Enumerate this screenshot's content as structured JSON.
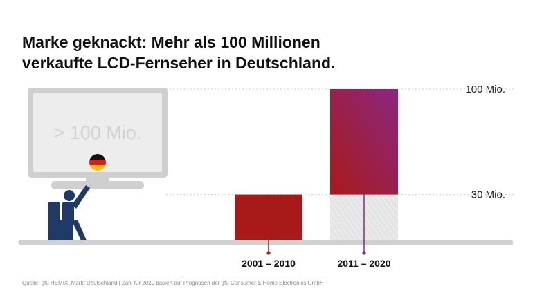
{
  "title_line1": "Marke geknackt: Mehr als 100 Millionen",
  "title_line2": "verkaufte LCD-Fernseher in Deutschland.",
  "tv_screen_text": "> 100 Mio.",
  "source": "Quelle: gfu HEMIX, Markt Deutschland | Zahl für 2020 basiert auf Prognosen der gfu Consumer & Home Electronics GmbH",
  "colors": {
    "bar1": "#a81a1a",
    "bar2_top_start": "#a81a1a",
    "bar2_top_end": "#8c2680",
    "bar2_base": "#e4e4e4",
    "tv_frame": "#cfcfcf",
    "person": "#1f3a66",
    "grid": "#d0d0d0",
    "axis": "#d0d0d0"
  },
  "chart_data": {
    "type": "bar",
    "title": "Marke geknackt: Mehr als 100 Millionen verkaufte LCD-Fernseher in Deutschland.",
    "categories": [
      "2001 – 2010",
      "2011 – 2020"
    ],
    "values": [
      30,
      100
    ],
    "stack_base_for_second_bar": 30,
    "unit": "Mio.",
    "ylim": [
      0,
      100
    ],
    "yticks": [
      {
        "value": 30,
        "label": "30 Mio."
      },
      {
        "value": 100,
        "label": "100 Mio."
      }
    ],
    "xlabel": "",
    "ylabel": ""
  }
}
